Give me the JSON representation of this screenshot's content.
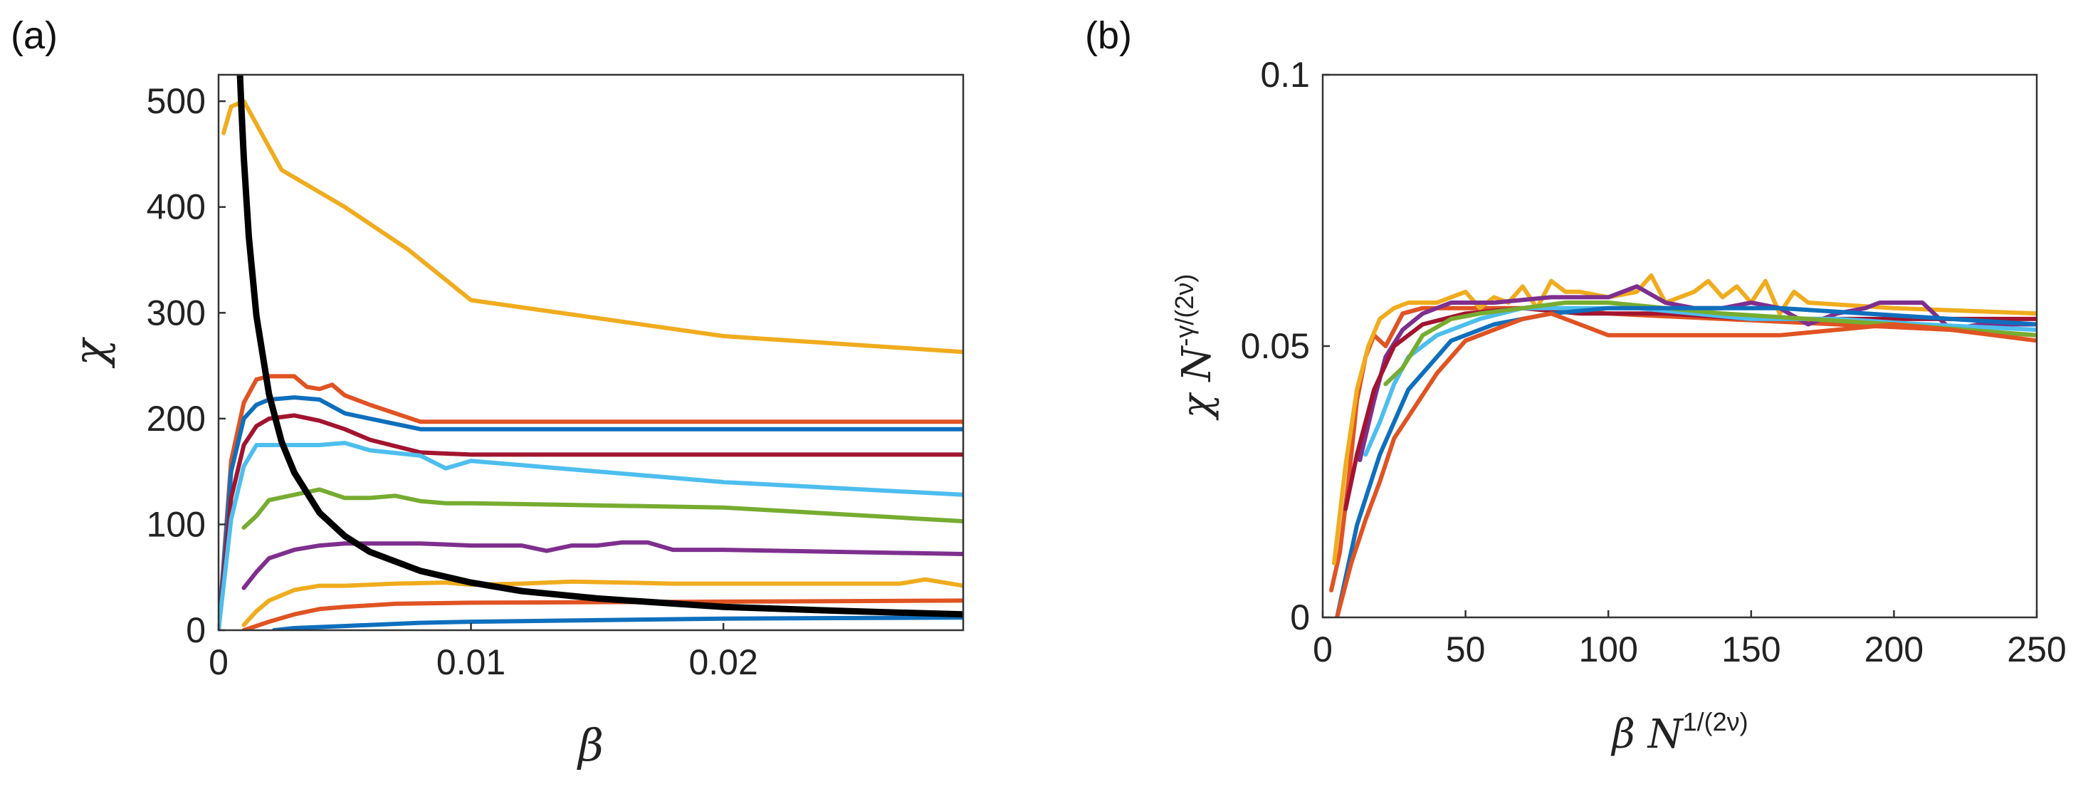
{
  "colors": {
    "yellow": "#f0ac1e",
    "orange": "#e05323",
    "darkred": "#a2142f",
    "blue": "#0f6fbd",
    "lightblue": "#4dbeee",
    "green": "#77ac30",
    "purple": "#7e2f8e",
    "black": "#000000",
    "axis": "#333333"
  },
  "panels": [
    {
      "panel_label": "(a)",
      "xlabel": "β",
      "ylabel": "χ",
      "xticks": [
        0,
        0.01,
        0.02
      ],
      "xtick_labels": [
        "0",
        "0.01",
        "0.02"
      ],
      "yticks": [
        0,
        100,
        200,
        300,
        400,
        500
      ],
      "ytick_labels": [
        "0",
        "100",
        "200",
        "300",
        "400",
        "500"
      ]
    },
    {
      "panel_label": "(b)",
      "xlabel_main": "β N",
      "xlabel_sup": "1/(2ν)",
      "ylabel_main": "χ N",
      "ylabel_sup": "-γ/(2ν)",
      "xticks": [
        0,
        50,
        100,
        150,
        200,
        250
      ],
      "xtick_labels": [
        "0",
        "50",
        "100",
        "150",
        "200",
        "250"
      ],
      "yticks": [
        0,
        0.05,
        0.1
      ],
      "ytick_labels": [
        "0",
        "0.05",
        "0.1"
      ]
    }
  ],
  "chart_data": [
    {
      "type": "line",
      "title": "",
      "xlabel": "β",
      "ylabel": "χ",
      "xlim": [
        0,
        0.0295
      ],
      "ylim": [
        0,
        525
      ],
      "grid": false,
      "series": [
        {
          "name": "yellow-top",
          "color": "#f0ac1e",
          "x": [
            0.0002,
            0.0005,
            0.001,
            0.0025,
            0.005,
            0.0075,
            0.01,
            0.015,
            0.02,
            0.0295
          ],
          "y": [
            470,
            495,
            500,
            435,
            400,
            360,
            312,
            295,
            278,
            263
          ]
        },
        {
          "name": "orange-240",
          "color": "#e05323",
          "x": [
            0,
            0.0005,
            0.001,
            0.0015,
            0.002,
            0.003,
            0.0035,
            0.004,
            0.0045,
            0.005,
            0.006,
            0.008,
            0.01,
            0.02,
            0.0295
          ],
          "y": [
            0,
            160,
            215,
            237,
            240,
            240,
            230,
            228,
            232,
            222,
            213,
            197,
            197,
            197,
            197
          ]
        },
        {
          "name": "blue-220",
          "color": "#0f6fbd",
          "x": [
            0,
            0.0005,
            0.001,
            0.0015,
            0.002,
            0.003,
            0.004,
            0.005,
            0.006,
            0.008,
            0.01,
            0.02,
            0.0295
          ],
          "y": [
            0,
            150,
            200,
            213,
            218,
            220,
            218,
            205,
            200,
            190,
            190,
            190,
            190
          ]
        },
        {
          "name": "darkred-200",
          "color": "#a2142f",
          "x": [
            0,
            0.0005,
            0.001,
            0.0015,
            0.002,
            0.003,
            0.004,
            0.005,
            0.006,
            0.008,
            0.01,
            0.02,
            0.0295
          ],
          "y": [
            0,
            125,
            175,
            193,
            200,
            203,
            198,
            190,
            180,
            168,
            166,
            166,
            166
          ]
        },
        {
          "name": "lightblue-175",
          "color": "#4dbeee",
          "x": [
            0,
            0.0005,
            0.001,
            0.0015,
            0.002,
            0.003,
            0.004,
            0.005,
            0.006,
            0.008,
            0.009,
            0.01,
            0.015,
            0.02,
            0.0295
          ],
          "y": [
            0,
            105,
            155,
            175,
            175,
            175,
            175,
            177,
            170,
            165,
            153,
            160,
            150,
            140,
            128
          ]
        },
        {
          "name": "green-130",
          "color": "#77ac30",
          "x": [
            0.001,
            0.0015,
            0.002,
            0.003,
            0.004,
            0.005,
            0.006,
            0.007,
            0.008,
            0.009,
            0.01,
            0.02,
            0.0295
          ],
          "y": [
            97,
            108,
            123,
            128,
            133,
            125,
            125,
            127,
            122,
            120,
            120,
            116,
            103
          ]
        },
        {
          "name": "purple-80",
          "color": "#7e2f8e",
          "x": [
            0.001,
            0.0015,
            0.002,
            0.003,
            0.004,
            0.005,
            0.008,
            0.01,
            0.012,
            0.013,
            0.014,
            0.015,
            0.016,
            0.017,
            0.018,
            0.02,
            0.0295
          ],
          "y": [
            40,
            55,
            68,
            76,
            80,
            82,
            82,
            80,
            80,
            75,
            80,
            80,
            83,
            83,
            76,
            76,
            72
          ]
        },
        {
          "name": "yellow-45",
          "color": "#f0ac1e",
          "x": [
            0.001,
            0.0015,
            0.002,
            0.003,
            0.004,
            0.005,
            0.007,
            0.009,
            0.01,
            0.012,
            0.014,
            0.016,
            0.018,
            0.02,
            0.027,
            0.028,
            0.0295
          ],
          "y": [
            5,
            18,
            28,
            38,
            42,
            42,
            44,
            45,
            43,
            44,
            46,
            45,
            44,
            44,
            44,
            48,
            42
          ]
        },
        {
          "name": "orange-30",
          "color": "#e05323",
          "x": [
            0.001,
            0.002,
            0.003,
            0.004,
            0.005,
            0.007,
            0.01,
            0.02,
            0.0295
          ],
          "y": [
            0,
            8,
            15,
            20,
            22,
            25,
            26,
            27,
            28
          ]
        },
        {
          "name": "blue-12",
          "color": "#0f6fbd",
          "x": [
            0.0022,
            0.003,
            0.005,
            0.008,
            0.01,
            0.02,
            0.0295
          ],
          "y": [
            0,
            2,
            4,
            7,
            8,
            11,
            12
          ]
        },
        {
          "name": "fit-curve",
          "color": "#000000",
          "width": 9,
          "x": [
            0.00085,
            0.0009,
            0.001,
            0.0012,
            0.0015,
            0.002,
            0.0025,
            0.003,
            0.004,
            0.005,
            0.006,
            0.008,
            0.01,
            0.012,
            0.015,
            0.02,
            0.025,
            0.0295
          ],
          "y": [
            525,
            496,
            446,
            372,
            297,
            223,
            178,
            149,
            111,
            89,
            74,
            56,
            45,
            37,
            30,
            22,
            18,
            15
          ]
        }
      ]
    },
    {
      "type": "line",
      "title": "",
      "xlabel": "β N^{1/(2ν)}",
      "ylabel": "χ N^{-γ/(2ν)}",
      "xlim": [
        0,
        250
      ],
      "ylim": [
        0,
        0.1
      ],
      "grid": false,
      "series": [
        {
          "name": "orange-a",
          "color": "#e05323",
          "x": [
            3,
            6,
            9,
            12,
            15,
            18,
            22,
            28,
            35,
            45,
            60,
            80,
            100,
            140,
            180,
            220,
            250
          ],
          "y": [
            0.005,
            0.012,
            0.025,
            0.04,
            0.048,
            0.052,
            0.05,
            0.056,
            0.057,
            0.057,
            0.057,
            0.057,
            0.056,
            0.055,
            0.054,
            0.053,
            0.052
          ]
        },
        {
          "name": "yellow-a",
          "color": "#f0ac1e",
          "x": [
            4,
            8,
            12,
            16,
            20,
            25,
            30,
            40,
            50,
            55,
            60,
            65,
            70,
            75,
            80,
            85,
            90,
            100,
            110,
            115,
            120,
            125,
            130,
            135,
            140,
            145,
            150,
            155,
            160,
            165,
            170,
            200,
            250
          ],
          "y": [
            0.01,
            0.028,
            0.042,
            0.05,
            0.055,
            0.057,
            0.058,
            0.058,
            0.06,
            0.057,
            0.059,
            0.058,
            0.061,
            0.057,
            0.062,
            0.06,
            0.06,
            0.059,
            0.06,
            0.063,
            0.058,
            0.059,
            0.06,
            0.062,
            0.059,
            0.061,
            0.058,
            0.062,
            0.056,
            0.06,
            0.058,
            0.057,
            0.056
          ]
        },
        {
          "name": "purple",
          "color": "#7e2f8e",
          "x": [
            13,
            18,
            22,
            28,
            35,
            45,
            60,
            80,
            100,
            110,
            120,
            130,
            140,
            150,
            160,
            170,
            180,
            190,
            195,
            210,
            220,
            230,
            250
          ],
          "y": [
            0.029,
            0.04,
            0.048,
            0.053,
            0.056,
            0.058,
            0.058,
            0.059,
            0.059,
            0.061,
            0.058,
            0.057,
            0.057,
            0.058,
            0.057,
            0.054,
            0.056,
            0.057,
            0.058,
            0.058,
            0.053,
            0.054,
            0.054
          ]
        },
        {
          "name": "darkred",
          "color": "#a2142f",
          "x": [
            8,
            12,
            18,
            25,
            35,
            50,
            70,
            90,
            120,
            150,
            180,
            210,
            250
          ],
          "y": [
            0.02,
            0.03,
            0.042,
            0.05,
            0.054,
            0.056,
            0.057,
            0.056,
            0.056,
            0.055,
            0.055,
            0.055,
            0.055
          ]
        },
        {
          "name": "lightblue",
          "color": "#4dbeee",
          "x": [
            15,
            20,
            25,
            30,
            40,
            55,
            70,
            90,
            110,
            130,
            150,
            180,
            210,
            250
          ],
          "y": [
            0.03,
            0.036,
            0.043,
            0.048,
            0.052,
            0.055,
            0.057,
            0.057,
            0.057,
            0.056,
            0.055,
            0.055,
            0.054,
            0.053
          ]
        },
        {
          "name": "green",
          "color": "#77ac30",
          "x": [
            22,
            28,
            35,
            45,
            55,
            70,
            85,
            100,
            120,
            140,
            170,
            200,
            250
          ],
          "y": [
            0.043,
            0.046,
            0.052,
            0.055,
            0.056,
            0.057,
            0.058,
            0.058,
            0.057,
            0.056,
            0.055,
            0.054,
            0.052
          ]
        },
        {
          "name": "blue",
          "color": "#0f6fbd",
          "x": [
            5,
            12,
            20,
            30,
            45,
            60,
            80,
            100,
            120,
            140,
            160,
            190,
            220,
            250
          ],
          "y": [
            0.0,
            0.017,
            0.03,
            0.042,
            0.051,
            0.054,
            0.056,
            0.057,
            0.057,
            0.057,
            0.057,
            0.056,
            0.055,
            0.054
          ]
        },
        {
          "name": "orange-b",
          "color": "#e05323",
          "x": [
            5,
            10,
            15,
            20,
            25,
            30,
            40,
            50,
            60,
            70,
            80,
            90,
            100,
            120,
            140,
            160,
            180,
            200,
            220,
            250
          ],
          "y": [
            0.0,
            0.01,
            0.018,
            0.025,
            0.033,
            0.037,
            0.045,
            0.051,
            0.053,
            0.055,
            0.056,
            0.054,
            0.052,
            0.052,
            0.052,
            0.052,
            0.053,
            0.054,
            0.053,
            0.051
          ]
        }
      ]
    }
  ]
}
